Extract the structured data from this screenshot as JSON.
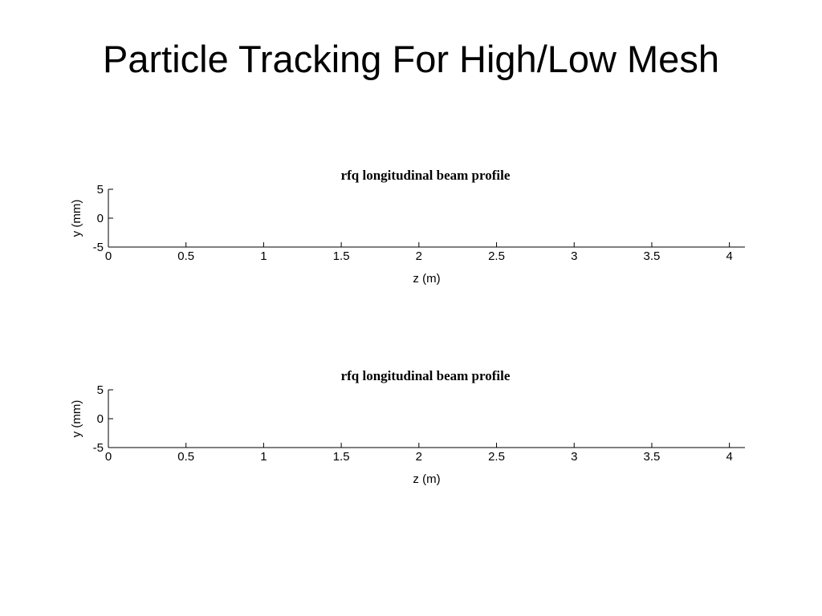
{
  "slide": {
    "title": "Particle Tracking For High/Low Mesh"
  },
  "chart_data": [
    {
      "type": "line",
      "title": "rfq longitudinal beam profile",
      "xlabel": "z (m)",
      "ylabel": "y (mm)",
      "xlim": [
        0,
        4.1
      ],
      "ylim": [
        -5,
        5
      ],
      "x_ticks": [
        0,
        0.5,
        1,
        1.5,
        2,
        2.5,
        3,
        3.5,
        4
      ],
      "x_tick_labels": [
        "0",
        "0.5",
        "1",
        "1.5",
        "2",
        "2.5",
        "3",
        "3.5",
        "4"
      ],
      "y_ticks": [
        5,
        0,
        -5
      ],
      "y_tick_labels": [
        "5",
        "0",
        "-5"
      ],
      "series": [],
      "grid": false
    },
    {
      "type": "line",
      "title": "rfq longitudinal beam profile",
      "xlabel": "z (m)",
      "ylabel": "y (mm)",
      "xlim": [
        0,
        4.1
      ],
      "ylim": [
        -5,
        5
      ],
      "x_ticks": [
        0,
        0.5,
        1,
        1.5,
        2,
        2.5,
        3,
        3.5,
        4
      ],
      "x_tick_labels": [
        "0",
        "0.5",
        "1",
        "1.5",
        "2",
        "2.5",
        "3",
        "3.5",
        "4"
      ],
      "y_ticks": [
        5,
        0,
        -5
      ],
      "y_tick_labels": [
        "5",
        "0",
        "-5"
      ],
      "series": [],
      "grid": false
    }
  ]
}
